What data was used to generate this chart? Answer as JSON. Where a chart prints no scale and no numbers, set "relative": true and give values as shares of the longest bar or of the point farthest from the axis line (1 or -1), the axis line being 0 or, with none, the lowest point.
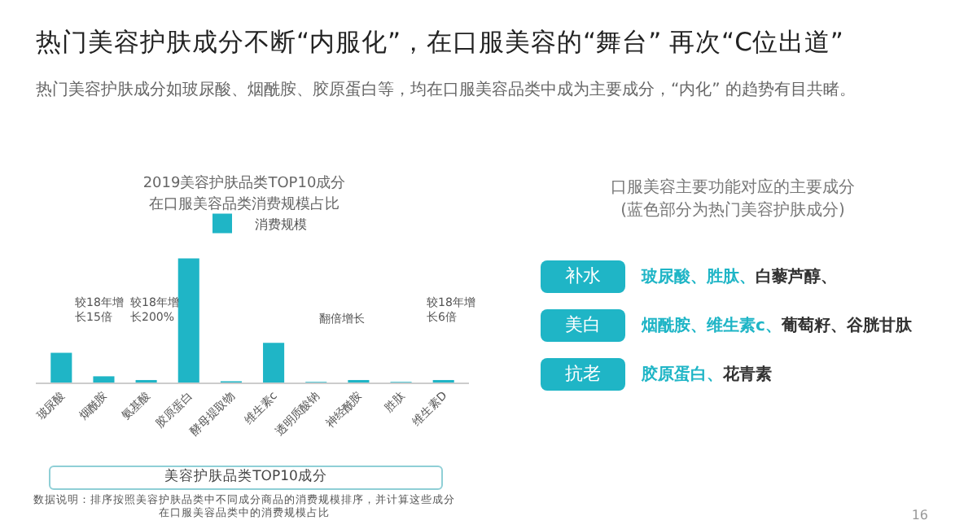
{
  "chart_data": [
    {
      "type": "other",
      "title": "热门美容护肤成分不断“内服化”，在口服美容的“舞台” 再次“C位出道”",
      "subtitle": "热门美容护肤成分如玻尿酸、烟酰胺、胶原蛋白等，均在口服美容品类中成为主要成分，“内化” 的趋势有目共睹。",
      "annotations": [
        "16"
      ]
    },
    {
      "type": "bar",
      "relative": true,
      "title": "2019美容护肤品类TOP10成分",
      "subtitle": "在口服美容品类消费规模占比",
      "xlabel": "美容护肤品类TOP10成分",
      "categories": [
        "玻尿酸",
        "烟酰胺",
        "氨基酸",
        "胶原蛋白",
        "酵母提取物",
        "维生素c",
        "透明质酸钠",
        "神经酰胺",
        "胜肽",
        "维生素D"
      ],
      "series": [
        {
          "name": "消费规模",
          "color": "#1fb5c6",
          "values": [
            0.24,
            0.05,
            0.02,
            1,
            0.01,
            0.32,
            0.005,
            0.02,
            0.005,
            0.02
          ]
        }
      ],
      "legend": "top",
      "grid": false,
      "annotations": [
        "较18年增长15倍",
        "较18年增长200%",
        "翻倍增长",
        "较18年增长6倍",
        "数据说明：排序按照美容护肤品类中不同成分商品的消费规模排序，并计算这些成分在口服美容品类中的消费规模占比"
      ]
    },
    {
      "type": "other",
      "title": "口服美容主要功能对应的主要成分",
      "subtitle": "(蓝色部分为热门美容护肤成分)",
      "color": "#1fb5c6",
      "categories": [
        "补水",
        "美白",
        "抗老"
      ],
      "annotations": [
        "玻尿酸、胜肽、",
        "白藜芦醇、",
        "烟酰胺、维生素c、",
        "葡萄籽、谷胱甘肽",
        "胶原蛋白、",
        "花青素"
      ]
    }
  ]
}
